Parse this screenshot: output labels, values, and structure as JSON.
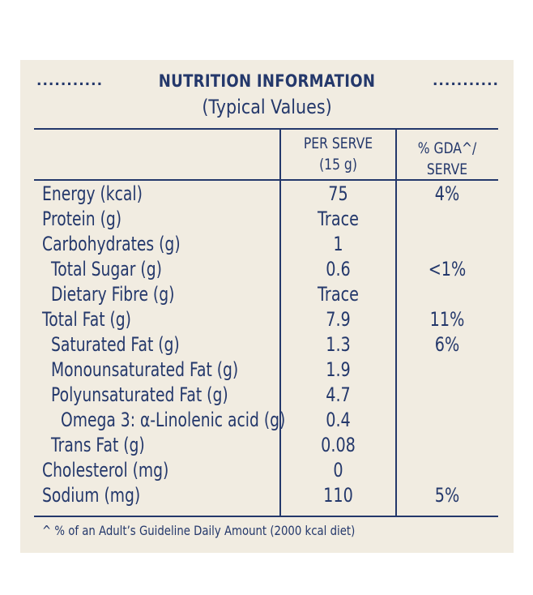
{
  "panel": {
    "title": "NUTRITION INFORMATION",
    "dots": "...........",
    "subtitle": "(Typical Values)"
  },
  "headers": {
    "per_serve_line1": "PER SERVE",
    "per_serve_line2": "(15 g)",
    "gda_line1": "% GDA^/",
    "gda_line2": "SERVE"
  },
  "rows": [
    {
      "nutrient": "Energy (kcal)",
      "per_serve": "75",
      "gda": "4%",
      "indent": 0
    },
    {
      "nutrient": "Protein (g)",
      "per_serve": "Trace",
      "gda": "",
      "indent": 0
    },
    {
      "nutrient": "Carbohydrates (g)",
      "per_serve": "1",
      "gda": "",
      "indent": 0
    },
    {
      "nutrient": "Total Sugar (g)",
      "per_serve": "0.6",
      "gda": "<1%",
      "indent": 1
    },
    {
      "nutrient": "Dietary Fibre (g)",
      "per_serve": "Trace",
      "gda": "",
      "indent": 1
    },
    {
      "nutrient": "Total Fat (g)",
      "per_serve": "7.9",
      "gda": "11%",
      "indent": 0
    },
    {
      "nutrient": "Saturated Fat (g)",
      "per_serve": "1.3",
      "gda": "6%",
      "indent": 1
    },
    {
      "nutrient": "Monounsaturated Fat (g)",
      "per_serve": "1.9",
      "gda": "",
      "indent": 1
    },
    {
      "nutrient": "Polyunsaturated Fat (g)",
      "per_serve": "4.7",
      "gda": "",
      "indent": 1
    },
    {
      "nutrient": "Omega 3: α-Linolenic acid (g)",
      "per_serve": "0.4",
      "gda": "",
      "indent": 2
    },
    {
      "nutrient": "Trans Fat (g)",
      "per_serve": "0.08",
      "gda": "",
      "indent": 1
    },
    {
      "nutrient": "Cholesterol (mg)",
      "per_serve": "0",
      "gda": "",
      "indent": 0
    },
    {
      "nutrient": "Sodium (mg)",
      "per_serve": "110",
      "gda": "5%",
      "indent": 0
    }
  ],
  "footnote": "^ % of an Adult’s Guideline Daily Amount (2000 kcal diet)",
  "colors": {
    "background": "#f1ece1",
    "text": "#24386b"
  }
}
